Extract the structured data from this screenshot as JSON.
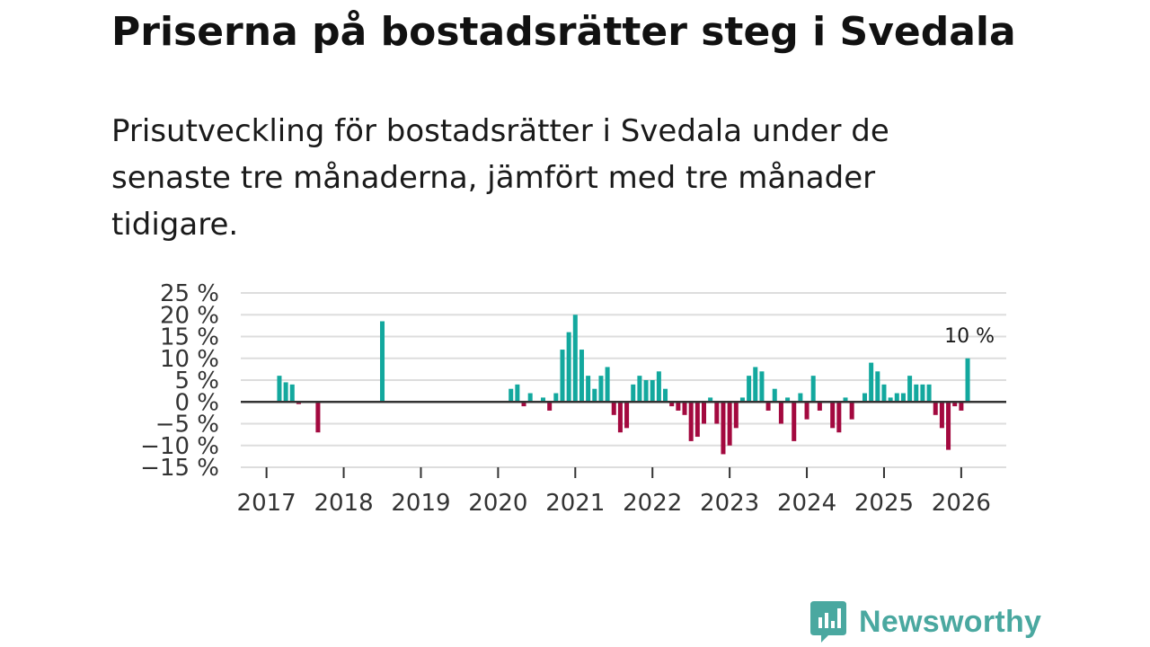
{
  "title": "Priserna på bostadsrätter steg i Svedala",
  "subtitle": "Prisutveckling för bostadsrätter i Svedala under de senaste tre månaderna, jämfört med tre månader tidigare.",
  "brand": {
    "name": "Newsworthy",
    "icon": "newsworthy-logo-icon",
    "color": "#4aa8a0"
  },
  "chart_data": {
    "type": "bar",
    "title": "",
    "xlabel": "",
    "ylabel": "",
    "ylim": [
      -15,
      25
    ],
    "yticks": [
      25,
      20,
      15,
      10,
      5,
      0,
      -5,
      -10,
      -15
    ],
    "ytick_labels": [
      "25 %",
      "20 %",
      "15 %",
      "10 %",
      "5 %",
      "0 %",
      "−5 %",
      "−10 %",
      "−15 %"
    ],
    "xlim": [
      "2016-09",
      "2026-08"
    ],
    "xtick_labels": [
      "2017",
      "2018",
      "2019",
      "2020",
      "2021",
      "2022",
      "2023",
      "2024",
      "2025",
      "2026"
    ],
    "xtick_positions": [
      "2017-01",
      "2018-01",
      "2019-01",
      "2020-01",
      "2021-01",
      "2022-01",
      "2023-01",
      "2024-01",
      "2025-01",
      "2026-01"
    ],
    "colors": {
      "positive": "#13a89e",
      "negative": "#a3093f",
      "grid": "#dddddd",
      "zero": "#333333"
    },
    "grid": true,
    "series": [
      {
        "name": "Prisutveckling",
        "points": [
          {
            "month": "2017-03",
            "value": 6
          },
          {
            "month": "2017-04",
            "value": 4.5
          },
          {
            "month": "2017-05",
            "value": 4
          },
          {
            "month": "2017-06",
            "value": -0.5
          },
          {
            "month": "2017-09",
            "value": -7
          },
          {
            "month": "2018-07",
            "value": 18.5
          },
          {
            "month": "2020-03",
            "value": 3
          },
          {
            "month": "2020-04",
            "value": 4
          },
          {
            "month": "2020-05",
            "value": -1
          },
          {
            "month": "2020-06",
            "value": 2
          },
          {
            "month": "2020-08",
            "value": 1
          },
          {
            "month": "2020-09",
            "value": -2
          },
          {
            "month": "2020-10",
            "value": 2
          },
          {
            "month": "2020-11",
            "value": 12
          },
          {
            "month": "2020-12",
            "value": 16
          },
          {
            "month": "2021-01",
            "value": 20
          },
          {
            "month": "2021-02",
            "value": 12
          },
          {
            "month": "2021-03",
            "value": 6
          },
          {
            "month": "2021-04",
            "value": 3
          },
          {
            "month": "2021-05",
            "value": 6
          },
          {
            "month": "2021-06",
            "value": 8
          },
          {
            "month": "2021-07",
            "value": -3
          },
          {
            "month": "2021-08",
            "value": -7
          },
          {
            "month": "2021-09",
            "value": -6
          },
          {
            "month": "2021-10",
            "value": 4
          },
          {
            "month": "2021-11",
            "value": 6
          },
          {
            "month": "2021-12",
            "value": 5
          },
          {
            "month": "2022-01",
            "value": 5
          },
          {
            "month": "2022-02",
            "value": 7
          },
          {
            "month": "2022-03",
            "value": 3
          },
          {
            "month": "2022-04",
            "value": -1
          },
          {
            "month": "2022-05",
            "value": -2
          },
          {
            "month": "2022-06",
            "value": -3
          },
          {
            "month": "2022-07",
            "value": -9
          },
          {
            "month": "2022-08",
            "value": -8
          },
          {
            "month": "2022-09",
            "value": -5
          },
          {
            "month": "2022-10",
            "value": 1
          },
          {
            "month": "2022-11",
            "value": -5
          },
          {
            "month": "2022-12",
            "value": -12
          },
          {
            "month": "2023-01",
            "value": -10
          },
          {
            "month": "2023-02",
            "value": -6
          },
          {
            "month": "2023-03",
            "value": 1
          },
          {
            "month": "2023-04",
            "value": 6
          },
          {
            "month": "2023-05",
            "value": 8
          },
          {
            "month": "2023-06",
            "value": 7
          },
          {
            "month": "2023-07",
            "value": -2
          },
          {
            "month": "2023-08",
            "value": 3
          },
          {
            "month": "2023-09",
            "value": -5
          },
          {
            "month": "2023-10",
            "value": 1
          },
          {
            "month": "2023-11",
            "value": -9
          },
          {
            "month": "2023-12",
            "value": 2
          },
          {
            "month": "2024-01",
            "value": -4
          },
          {
            "month": "2024-02",
            "value": 6
          },
          {
            "month": "2024-03",
            "value": -2
          },
          {
            "month": "2024-05",
            "value": -6
          },
          {
            "month": "2024-06",
            "value": -7
          },
          {
            "month": "2024-07",
            "value": 1
          },
          {
            "month": "2024-08",
            "value": -4
          },
          {
            "month": "2024-10",
            "value": 2
          },
          {
            "month": "2024-11",
            "value": 9
          },
          {
            "month": "2024-12",
            "value": 7
          },
          {
            "month": "2025-01",
            "value": 4
          },
          {
            "month": "2025-02",
            "value": 1
          },
          {
            "month": "2025-03",
            "value": 2
          },
          {
            "month": "2025-04",
            "value": 2
          },
          {
            "month": "2025-05",
            "value": 6
          },
          {
            "month": "2025-06",
            "value": 4
          },
          {
            "month": "2025-07",
            "value": 4
          },
          {
            "month": "2025-08",
            "value": 4
          },
          {
            "month": "2025-09",
            "value": -3
          },
          {
            "month": "2025-10",
            "value": -6
          },
          {
            "month": "2025-11",
            "value": -11
          },
          {
            "month": "2025-12",
            "value": -1
          },
          {
            "month": "2026-01",
            "value": -2
          },
          {
            "month": "2026-02",
            "value": 10
          }
        ]
      }
    ],
    "annotations": [
      {
        "month": "2026-02",
        "value": 10,
        "label": "10 %"
      }
    ]
  }
}
